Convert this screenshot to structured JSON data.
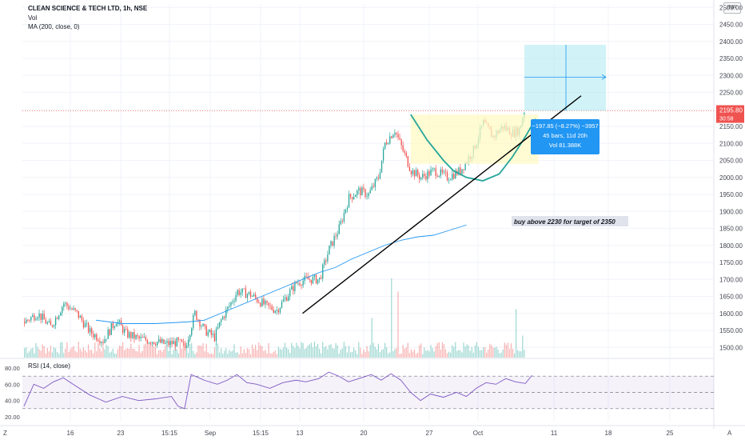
{
  "header": {
    "title": "CLEAN SCIENCE & TECH LTD, 1h, NSE",
    "vol_label": "Vol",
    "ma_label": "MA (200, close, 0)",
    "currency": "INR"
  },
  "rsi": {
    "label": "RSI (14, close)",
    "levels": [
      "80.00",
      "60.00",
      "40.00",
      "20.00"
    ],
    "upper": 70,
    "lower": 30,
    "mid": 50
  },
  "price_tag": {
    "value": "2195.80",
    "countdown": "30:58"
  },
  "measure_box": {
    "line1": "−197.85 (−8.27%) −3957",
    "line2": "45 bars, 11d 20h",
    "line3": "Vol 81.388K"
  },
  "annotation": "buy above 2230 for target of 2350",
  "x_axis": {
    "ticks": [
      "16",
      "23",
      "15:15",
      "Sep",
      "15:15",
      "13",
      "20",
      "27",
      "Oct",
      "11",
      "18",
      "25"
    ],
    "left_icon": "Z",
    "right_icon": "A"
  },
  "colors": {
    "up": "#26a69a",
    "down": "#ef5350",
    "ma": "#2196f3",
    "rsi": "#7e57c2",
    "box": "#b2ebf2",
    "cup": "#fff9c4",
    "tag": "#ef5350",
    "measure": "#2196f3"
  },
  "chart_data": {
    "type": "candlestick",
    "ylim": [
      1470,
      2510
    ],
    "y_ticks": [
      1500,
      1550,
      1600,
      1650,
      1700,
      1750,
      1800,
      1850,
      1900,
      1950,
      2000,
      2050,
      2100,
      2150,
      2200,
      2250,
      2300,
      2350,
      2400,
      2450,
      2500
    ],
    "last_price": 2195.8,
    "close_path": [
      [
        0,
        1575
      ],
      [
        8,
        1600
      ],
      [
        16,
        1560
      ],
      [
        24,
        1630
      ],
      [
        32,
        1600
      ],
      [
        40,
        1545
      ],
      [
        48,
        1520
      ],
      [
        56,
        1580
      ],
      [
        62,
        1540
      ],
      [
        70,
        1525
      ],
      [
        78,
        1520
      ],
      [
        86,
        1510
      ],
      [
        94,
        1515
      ],
      [
        98,
        1500
      ],
      [
        104,
        1600
      ],
      [
        110,
        1550
      ],
      [
        116,
        1530
      ],
      [
        120,
        1580
      ],
      [
        130,
        1665
      ],
      [
        138,
        1655
      ],
      [
        148,
        1620
      ],
      [
        154,
        1610
      ],
      [
        160,
        1650
      ],
      [
        166,
        1690
      ],
      [
        172,
        1700
      ],
      [
        180,
        1700
      ],
      [
        186,
        1790
      ],
      [
        192,
        1850
      ],
      [
        198,
        1940
      ],
      [
        204,
        1960
      ],
      [
        210,
        1950
      ],
      [
        216,
        2000
      ],
      [
        220,
        2100
      ],
      [
        226,
        2140
      ],
      [
        230,
        2090
      ],
      [
        236,
        2020
      ],
      [
        242,
        2000
      ],
      [
        250,
        2020
      ],
      [
        258,
        2000
      ],
      [
        266,
        2020
      ],
      [
        274,
        2080
      ],
      [
        280,
        2160
      ],
      [
        286,
        2120
      ],
      [
        292,
        2150
      ],
      [
        298,
        2130
      ],
      [
        302,
        2140
      ],
      [
        305,
        2195.8
      ]
    ],
    "ma_path": [
      [
        44,
        1580
      ],
      [
        60,
        1570
      ],
      [
        80,
        1570
      ],
      [
        100,
        1575
      ],
      [
        110,
        1580
      ],
      [
        120,
        1600
      ],
      [
        130,
        1620
      ],
      [
        140,
        1640
      ],
      [
        150,
        1660
      ],
      [
        160,
        1680
      ],
      [
        170,
        1700
      ],
      [
        180,
        1720
      ],
      [
        190,
        1735
      ],
      [
        200,
        1760
      ],
      [
        210,
        1780
      ],
      [
        220,
        1800
      ],
      [
        230,
        1815
      ],
      [
        240,
        1825
      ],
      [
        250,
        1830
      ],
      [
        260,
        1845
      ],
      [
        270,
        1860
      ]
    ],
    "trendline": [
      [
        170,
        1600
      ],
      [
        340,
        2240
      ]
    ],
    "cup_path": [
      [
        236,
        2185
      ],
      [
        246,
        2110
      ],
      [
        256,
        2050
      ],
      [
        262,
        2020
      ],
      [
        270,
        2000
      ],
      [
        280,
        1990
      ],
      [
        290,
        2010
      ],
      [
        298,
        2060
      ],
      [
        306,
        2120
      ],
      [
        312,
        2170
      ],
      [
        318,
        2140
      ],
      [
        326,
        2120
      ],
      [
        334,
        2135
      ],
      [
        340,
        2165
      ]
    ],
    "volume_spikes": [
      [
        212,
        0.45
      ],
      [
        224,
        0.9
      ],
      [
        228,
        0.75
      ],
      [
        300,
        0.55
      ],
      [
        318,
        0.45
      ],
      [
        322,
        0.3
      ],
      [
        304,
        0.25
      ],
      [
        326,
        0.3
      ]
    ],
    "rsi_path": [
      [
        0,
        33
      ],
      [
        6,
        60
      ],
      [
        12,
        55
      ],
      [
        18,
        63
      ],
      [
        24,
        68
      ],
      [
        30,
        60
      ],
      [
        40,
        47
      ],
      [
        50,
        38
      ],
      [
        60,
        45
      ],
      [
        70,
        40
      ],
      [
        80,
        42
      ],
      [
        90,
        45
      ],
      [
        94,
        33
      ],
      [
        98,
        30
      ],
      [
        102,
        72
      ],
      [
        110,
        65
      ],
      [
        118,
        60
      ],
      [
        124,
        65
      ],
      [
        130,
        72
      ],
      [
        136,
        62
      ],
      [
        142,
        60
      ],
      [
        150,
        55
      ],
      [
        158,
        62
      ],
      [
        166,
        65
      ],
      [
        172,
        63
      ],
      [
        180,
        67
      ],
      [
        186,
        75
      ],
      [
        192,
        70
      ],
      [
        198,
        63
      ],
      [
        206,
        68
      ],
      [
        212,
        72
      ],
      [
        218,
        65
      ],
      [
        224,
        73
      ],
      [
        230,
        65
      ],
      [
        236,
        50
      ],
      [
        242,
        40
      ],
      [
        248,
        48
      ],
      [
        256,
        44
      ],
      [
        264,
        50
      ],
      [
        270,
        45
      ],
      [
        276,
        55
      ],
      [
        282,
        62
      ],
      [
        288,
        60
      ],
      [
        294,
        67
      ],
      [
        300,
        63
      ],
      [
        306,
        61
      ],
      [
        310,
        71
      ]
    ]
  }
}
